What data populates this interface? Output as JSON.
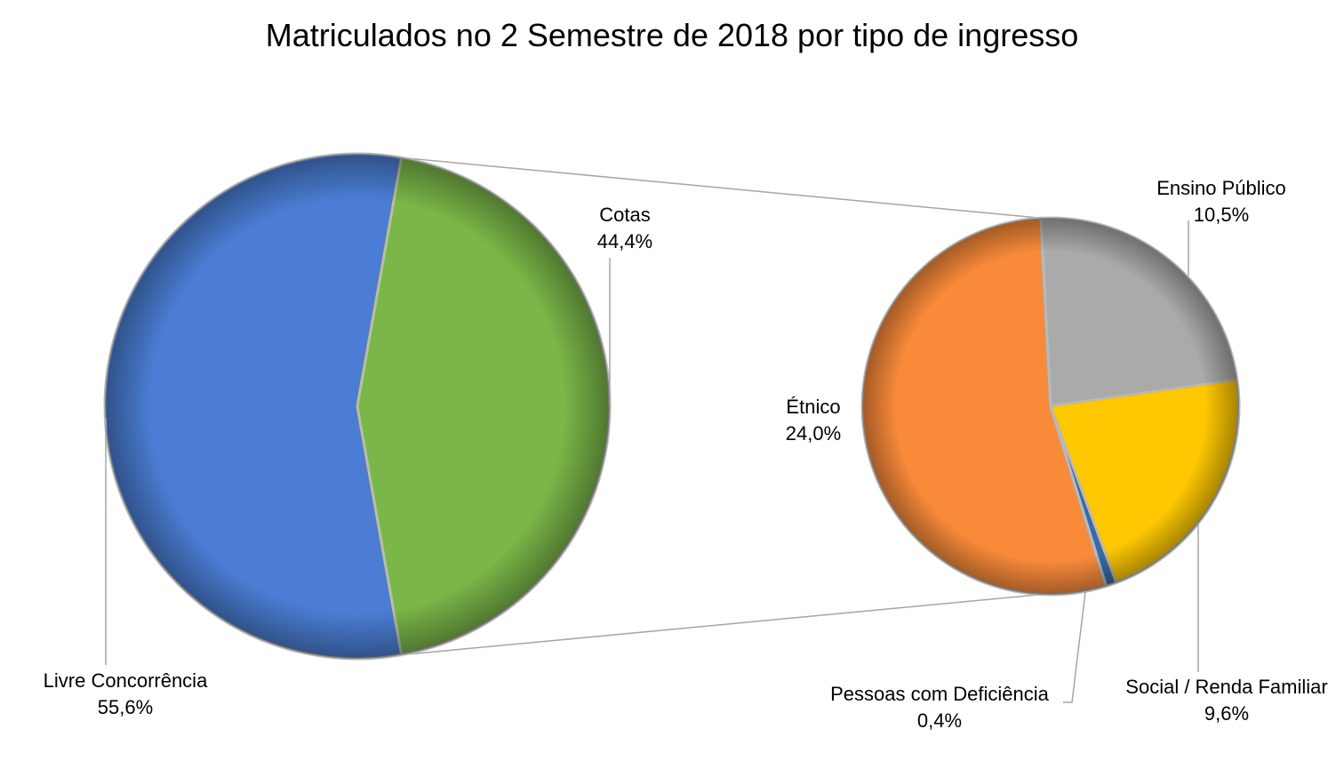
{
  "chart_data": {
    "type": "pie",
    "title": "Matriculados no 2 Semestre de 2018 por tipo de ingresso",
    "main_pie": {
      "slices": [
        {
          "name": "Livre Concorrência",
          "value": 55.6,
          "label": "55,6%",
          "color": "#4a7dd3"
        },
        {
          "name": "Cotas",
          "value": 44.4,
          "label": "44,4%",
          "color": "#7ab648"
        }
      ]
    },
    "secondary_pie": {
      "source_slice": "Cotas",
      "slices": [
        {
          "name": "Ensino Público",
          "value": 10.5,
          "label": "10,5%",
          "color": "#aaaaaa"
        },
        {
          "name": "Social / Renda Familiar",
          "value": 9.6,
          "label": "9,6%",
          "color": "#ffc800"
        },
        {
          "name": "Pessoas com Deficiência",
          "value": 0.4,
          "label": "0,4%",
          "color": "#3a6aa8"
        },
        {
          "name": "Étnico",
          "value": 24.0,
          "label": "24,0%",
          "color": "#f98a3a"
        }
      ]
    },
    "grid": false,
    "legend": "none"
  }
}
